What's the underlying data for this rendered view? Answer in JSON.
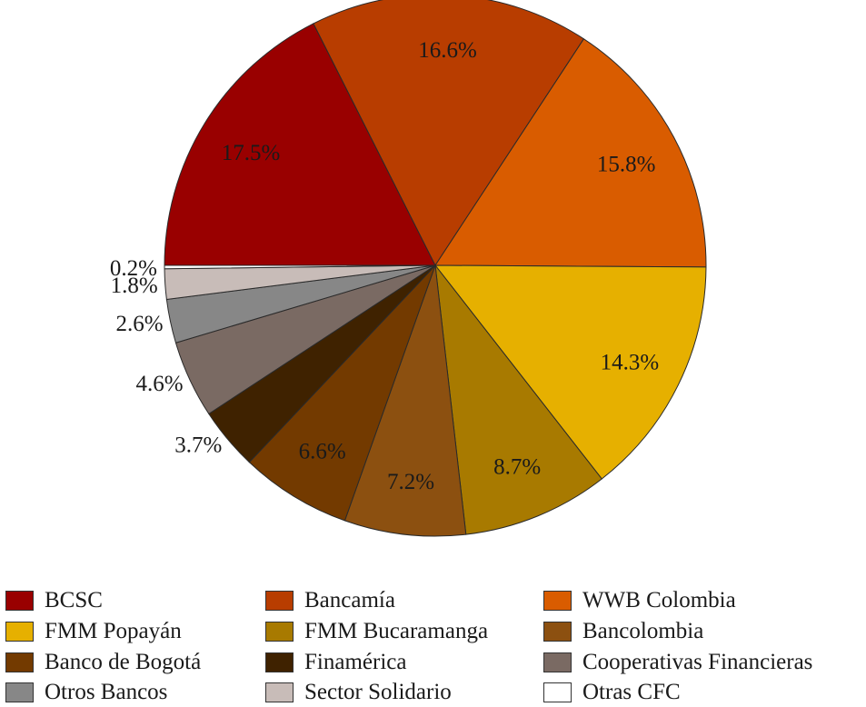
{
  "chart_data": {
    "type": "pie",
    "title": "",
    "start": "9 o'clock",
    "direction": "clockwise",
    "legend_placement": "bottom",
    "slices": [
      {
        "name": "BCSC",
        "value": 17.5,
        "label": "17.5%",
        "color": "#990000"
      },
      {
        "name": "Bancamía",
        "value": 16.6,
        "label": "16.6%",
        "color": "#B83D00"
      },
      {
        "name": "WWB Colombia",
        "value": 15.8,
        "label": "15.8%",
        "color": "#D95C00"
      },
      {
        "name": "FMM Popayán",
        "value": 14.3,
        "label": "14.3%",
        "color": "#E6B000"
      },
      {
        "name": "FMM Bucaramanga",
        "value": 8.7,
        "label": "8.7%",
        "color": "#A87A00"
      },
      {
        "name": "Bancolombia",
        "value": 7.2,
        "label": "7.2%",
        "color": "#8C5010"
      },
      {
        "name": "Banco de Bogotá",
        "value": 6.6,
        "label": "6.6%",
        "color": "#733A00"
      },
      {
        "name": "Finamérica",
        "value": 3.7,
        "label": "3.7%",
        "color": "#3F2200"
      },
      {
        "name": "Cooperativas Financieras",
        "value": 4.6,
        "label": "4.6%",
        "color": "#7A6A63"
      },
      {
        "name": "Otros Bancos",
        "value": 2.6,
        "label": "2.6%",
        "color": "#878787"
      },
      {
        "name": "Sector Solidario",
        "value": 1.8,
        "label": "1.8%",
        "color": "#C8BCB8"
      },
      {
        "name": "Otras CFC",
        "value": 0.2,
        "label": "0.2%",
        "color": "#FFFFFF"
      }
    ]
  }
}
